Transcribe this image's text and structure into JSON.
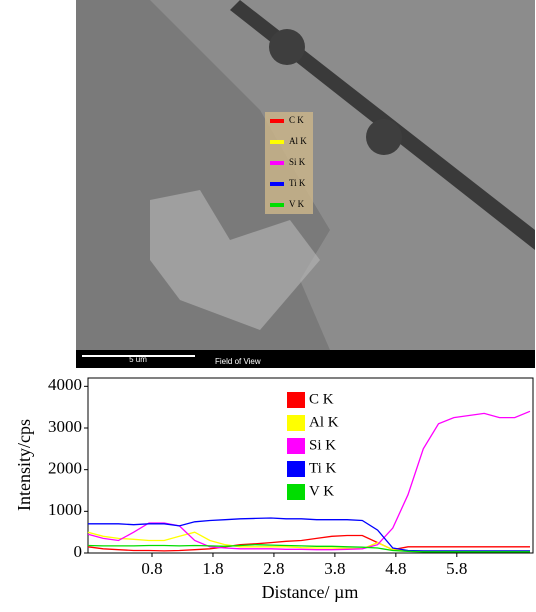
{
  "sem_image": {
    "scale_bar": "5 um",
    "field_label": "Field of View"
  },
  "chart_data": {
    "type": "line",
    "y_label": "Intensity/cps",
    "x_label": "Distance/ µm",
    "x": [
      -0.25,
      0,
      0.25,
      0.5,
      0.75,
      1,
      1.25,
      1.5,
      1.75,
      2,
      2.25,
      2.5,
      2.75,
      3,
      3.25,
      3.5,
      3.75,
      4,
      4.25,
      4.5,
      4.75,
      5,
      5.25,
      5.5,
      5.75,
      6,
      6.25,
      6.5,
      6.75,
      7
    ],
    "series": [
      {
        "name": "C K",
        "color": "#ff0000",
        "values": [
          150,
          100,
          80,
          60,
          60,
          50,
          60,
          80,
          100,
          150,
          200,
          220,
          250,
          280,
          300,
          350,
          400,
          420,
          420,
          250,
          80,
          150,
          150,
          150,
          150,
          150,
          150,
          150,
          150,
          150
        ]
      },
      {
        "name": "Al K",
        "color": "#ffff00",
        "values": [
          500,
          400,
          350,
          330,
          300,
          300,
          400,
          500,
          300,
          200,
          150,
          150,
          150,
          150,
          130,
          120,
          120,
          110,
          100,
          250,
          80,
          50,
          50,
          50,
          50,
          50,
          50,
          50,
          50,
          50
        ]
      },
      {
        "name": "Si K",
        "color": "#ff00ff",
        "values": [
          450,
          350,
          300,
          500,
          720,
          720,
          650,
          300,
          150,
          120,
          100,
          100,
          100,
          90,
          90,
          80,
          80,
          90,
          100,
          200,
          600,
          1400,
          2500,
          3100,
          3250,
          3300,
          3350,
          3250,
          3250,
          3400
        ]
      },
      {
        "name": "Ti K",
        "color": "#0000ff",
        "values": [
          700,
          700,
          700,
          680,
          700,
          700,
          650,
          750,
          780,
          800,
          820,
          830,
          840,
          820,
          820,
          800,
          800,
          800,
          780,
          550,
          120,
          60,
          50,
          50,
          50,
          50,
          50,
          50,
          50,
          50
        ]
      },
      {
        "name": "V K",
        "color": "#00dd00",
        "values": [
          180,
          170,
          170,
          170,
          180,
          180,
          170,
          180,
          170,
          160,
          180,
          200,
          190,
          180,
          170,
          160,
          160,
          150,
          140,
          120,
          60,
          40,
          30,
          30,
          30,
          30,
          30,
          30,
          30,
          30
        ]
      }
    ],
    "xlim": [
      -0.25,
      7.05
    ],
    "ylim": [
      0,
      4200
    ],
    "xticks": [
      0.8,
      1.8,
      2.8,
      3.8,
      4.8,
      5.8
    ],
    "yticks": [
      0,
      1000,
      2000,
      3000,
      4000
    ]
  }
}
